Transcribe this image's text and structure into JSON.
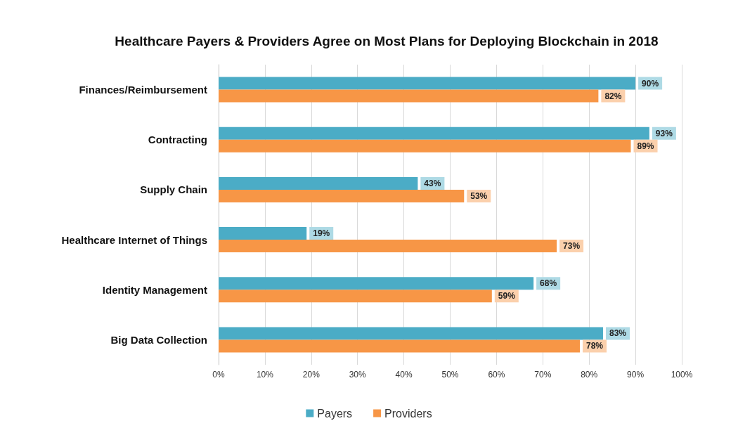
{
  "chart_data": {
    "type": "bar",
    "orientation": "horizontal",
    "title": "Healthcare Payers & Providers Agree on Most Plans for Deploying Blockchain in 2018",
    "categories": [
      "Finances/Reimbursement",
      "Contracting",
      "Supply Chain",
      "Healthcare Internet of Things",
      "Identity Management",
      "Big Data Collection"
    ],
    "series": [
      {
        "name": "Payers",
        "color": "#4bacc6",
        "values": [
          90,
          93,
          43,
          19,
          68,
          83
        ],
        "value_labels": [
          "90%",
          "93%",
          "43%",
          "19%",
          "68%",
          "83%"
        ]
      },
      {
        "name": "Providers",
        "color": "#f79646",
        "values": [
          82,
          89,
          53,
          73,
          59,
          78
        ],
        "value_labels": [
          "82%",
          "89%",
          "53%",
          "73%",
          "59%",
          "78%"
        ]
      }
    ],
    "xlim": [
      0,
      100
    ],
    "xticks": [
      {
        "value": 0,
        "label": "0%"
      },
      {
        "value": 10,
        "label": "10%"
      },
      {
        "value": 20,
        "label": "20%"
      },
      {
        "value": 30,
        "label": "30%"
      },
      {
        "value": 40,
        "label": "40%"
      },
      {
        "value": 50,
        "label": "50%"
      },
      {
        "value": 60,
        "label": "60%"
      },
      {
        "value": 70,
        "label": "70%"
      },
      {
        "value": 80,
        "label": "80%"
      },
      {
        "value": 90,
        "label": "90%"
      },
      {
        "value": 100,
        "label": "100%"
      }
    ],
    "grid": "x",
    "legend": "bottom"
  }
}
